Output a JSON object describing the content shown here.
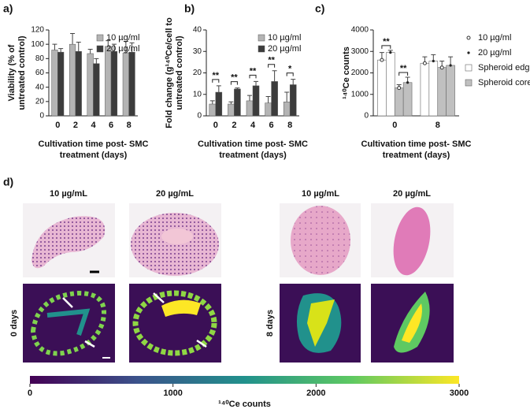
{
  "chart_data": [
    {
      "type": "bar",
      "panel": "a)",
      "ylabel": [
        "Viability (% of",
        "untreated control)"
      ],
      "xlabel": [
        "Cultivation time post- SMC",
        "treatment (days)"
      ],
      "categories": [
        "0",
        "2",
        "4",
        "6",
        "8"
      ],
      "series": [
        {
          "name": "10 µg/ml",
          "color": "#b4b4b4",
          "values": [
            92,
            100,
            87,
            97,
            88
          ],
          "errors": [
            8,
            15,
            6,
            8,
            16
          ]
        },
        {
          "name": "20 µg/ml",
          "color": "#3c3c3c",
          "values": [
            89,
            90,
            73,
            90,
            89
          ],
          "errors": [
            5,
            13,
            7,
            10,
            13
          ]
        }
      ],
      "ylim": [
        0,
        120
      ],
      "yticks": [
        0,
        20,
        40,
        60,
        80,
        100,
        120
      ],
      "grid": false
    },
    {
      "type": "bar",
      "panel": "b)",
      "ylabel": [
        "Fold change (g¹⁴⁰Ce/cell to",
        "untreated control)"
      ],
      "xlabel": [
        "Cultivation time post- SMC",
        "treatment (days)"
      ],
      "categories": [
        "0",
        "2",
        "4",
        "6",
        "8"
      ],
      "series": [
        {
          "name": "10 µg/ml",
          "color": "#b4b4b4",
          "values": [
            5.5,
            5.5,
            7,
            6,
            6.5
          ],
          "errors": [
            1.5,
            1,
            2.5,
            3,
            4.5
          ]
        },
        {
          "name": "20 µg/ml",
          "color": "#3c3c3c",
          "values": [
            11,
            12.5,
            14,
            16,
            14.5
          ],
          "errors": [
            3,
            0.5,
            2,
            5,
            2.5
          ]
        }
      ],
      "significance": [
        "**",
        "**",
        "**",
        "**",
        "*"
      ],
      "ylim": [
        0,
        40
      ],
      "yticks": [
        0,
        10,
        20,
        30,
        40
      ],
      "grid": false
    },
    {
      "type": "grouped-bar",
      "panel": "c)",
      "ylabel": [
        "¹⁴⁰Ce counts"
      ],
      "xlabel": [
        "Cultivation time post- SMC",
        "treatment (days)"
      ],
      "categories": [
        "0",
        "8"
      ],
      "doses": [
        {
          "label": "10 µg/ml",
          "marker": "circle-open"
        },
        {
          "label": "20 µg/ml",
          "marker": "dot"
        }
      ],
      "series": [
        {
          "name": "Spheroid edge",
          "color": "#ffffff",
          "values": [
            [
              2600,
              2950
            ],
            [
              2450,
              2550
            ]
          ],
          "errors": [
            [
              350,
              100
            ],
            [
              300,
              300
            ]
          ]
        },
        {
          "name": "Spheroid core",
          "color": "#c0c0c0",
          "values": [
            [
              1300,
              1550
            ],
            [
              2250,
              2350
            ]
          ],
          "errors": [
            [
              150,
              250
            ],
            [
              300,
              400
            ]
          ]
        }
      ],
      "significance": [
        "**",
        "**"
      ],
      "ylim": [
        0,
        4000
      ],
      "yticks": [
        0,
        1000,
        2000,
        3000,
        4000
      ],
      "grid": false
    },
    {
      "type": "colorbar",
      "xlabel": "¹⁴⁰Ce counts",
      "colors": [
        "#440154",
        "#3b528b",
        "#21918c",
        "#5ec962",
        "#fde725"
      ],
      "xlim": [
        0,
        3000
      ],
      "xticks": [
        0,
        1000,
        2000,
        3000
      ]
    }
  ],
  "figure_d": {
    "panel": "d)",
    "columns": [
      "10 µg/mL",
      "20 µg/mL",
      "10 µg/mL",
      "20 µg/mL"
    ],
    "rows": [
      "0 days",
      "8 days"
    ]
  }
}
